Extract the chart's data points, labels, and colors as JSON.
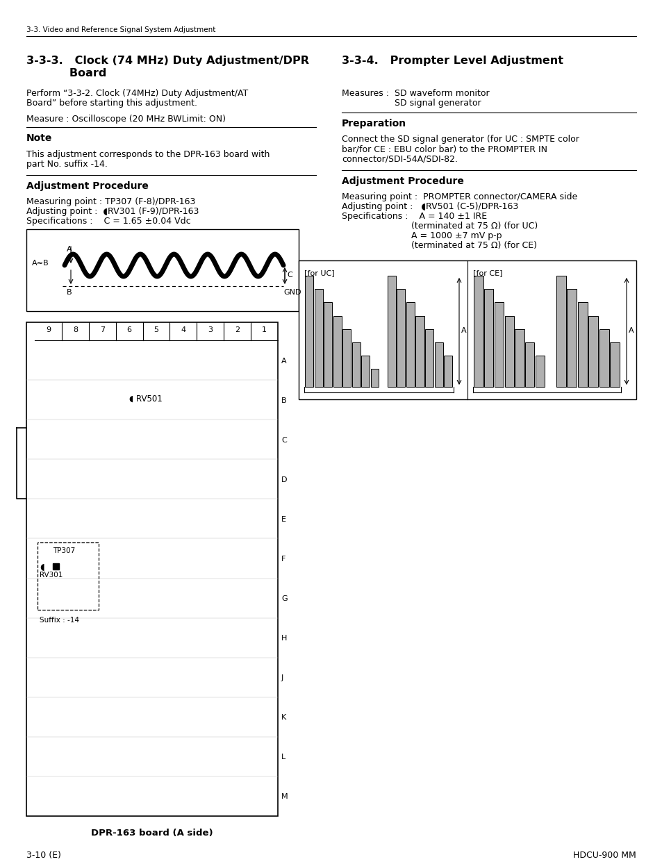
{
  "page_header": "3-3. Video and Reference Signal System Adjustment",
  "left_title_line1": "3-3-3.   Clock (74 MHz) Duty Adjustment/DPR",
  "left_title_line2": "           Board",
  "right_title": "3-3-4.   Prompter Level Adjustment",
  "left_body1_line1": "Perform “3-3-2. Clock (74MHz) Duty Adjustment/AT",
  "left_body1_line2": "Board” before starting this adjustment.",
  "left_body2": "Measure : Oscilloscope (20 MHz BWLimit: ON)",
  "note_header": "Note",
  "note_body1": "This adjustment corresponds to the DPR-163 board with",
  "note_body2": "part No. suffix -14.",
  "adj_proc_header_left": "Adjustment Procedure",
  "adj_meas_left": "Measuring point : TP307 (F-8)/DPR-163",
  "adj_adj_left": "Adjusting point :  ◖RV301 (F-9)/DPR-163",
  "adj_spec_left": "Specifications :    C = 1.65 ±0.04 Vdc",
  "right_measures1": "Measures :  SD waveform monitor",
  "right_measures2": "                   SD signal generator",
  "prep_header": "Preparation",
  "prep_body1": "Connect the SD signal generator (for UC : SMPTE color",
  "prep_body2": "bar/for CE : EBU color bar) to the PROMPTER IN",
  "prep_body3": "connector/SDI-54A/SDI-82.",
  "adj_proc_header_right": "Adjustment Procedure",
  "adj_meas_right": "Measuring point :  PROMPTER connector/CAMERA side",
  "adj_adj_right": "Adjusting point :   ◖RV501 (C-5)/DPR-163",
  "adj_spec_right1": "Specifications :    A = 140 ±1 IRE",
  "adj_spec_right2": "                         (terminated at 75 Ω) (for UC)",
  "adj_spec_right3": "                         A = 1000 ±7 mV p-p",
  "adj_spec_right4": "                         (terminated at 75 Ω) (for CE)",
  "board_caption": "DPR-163 board (A side)",
  "page_footer_left": "3-10 (E)",
  "page_footer_right": "HDCU-900 MM",
  "bg_color": "#ffffff"
}
